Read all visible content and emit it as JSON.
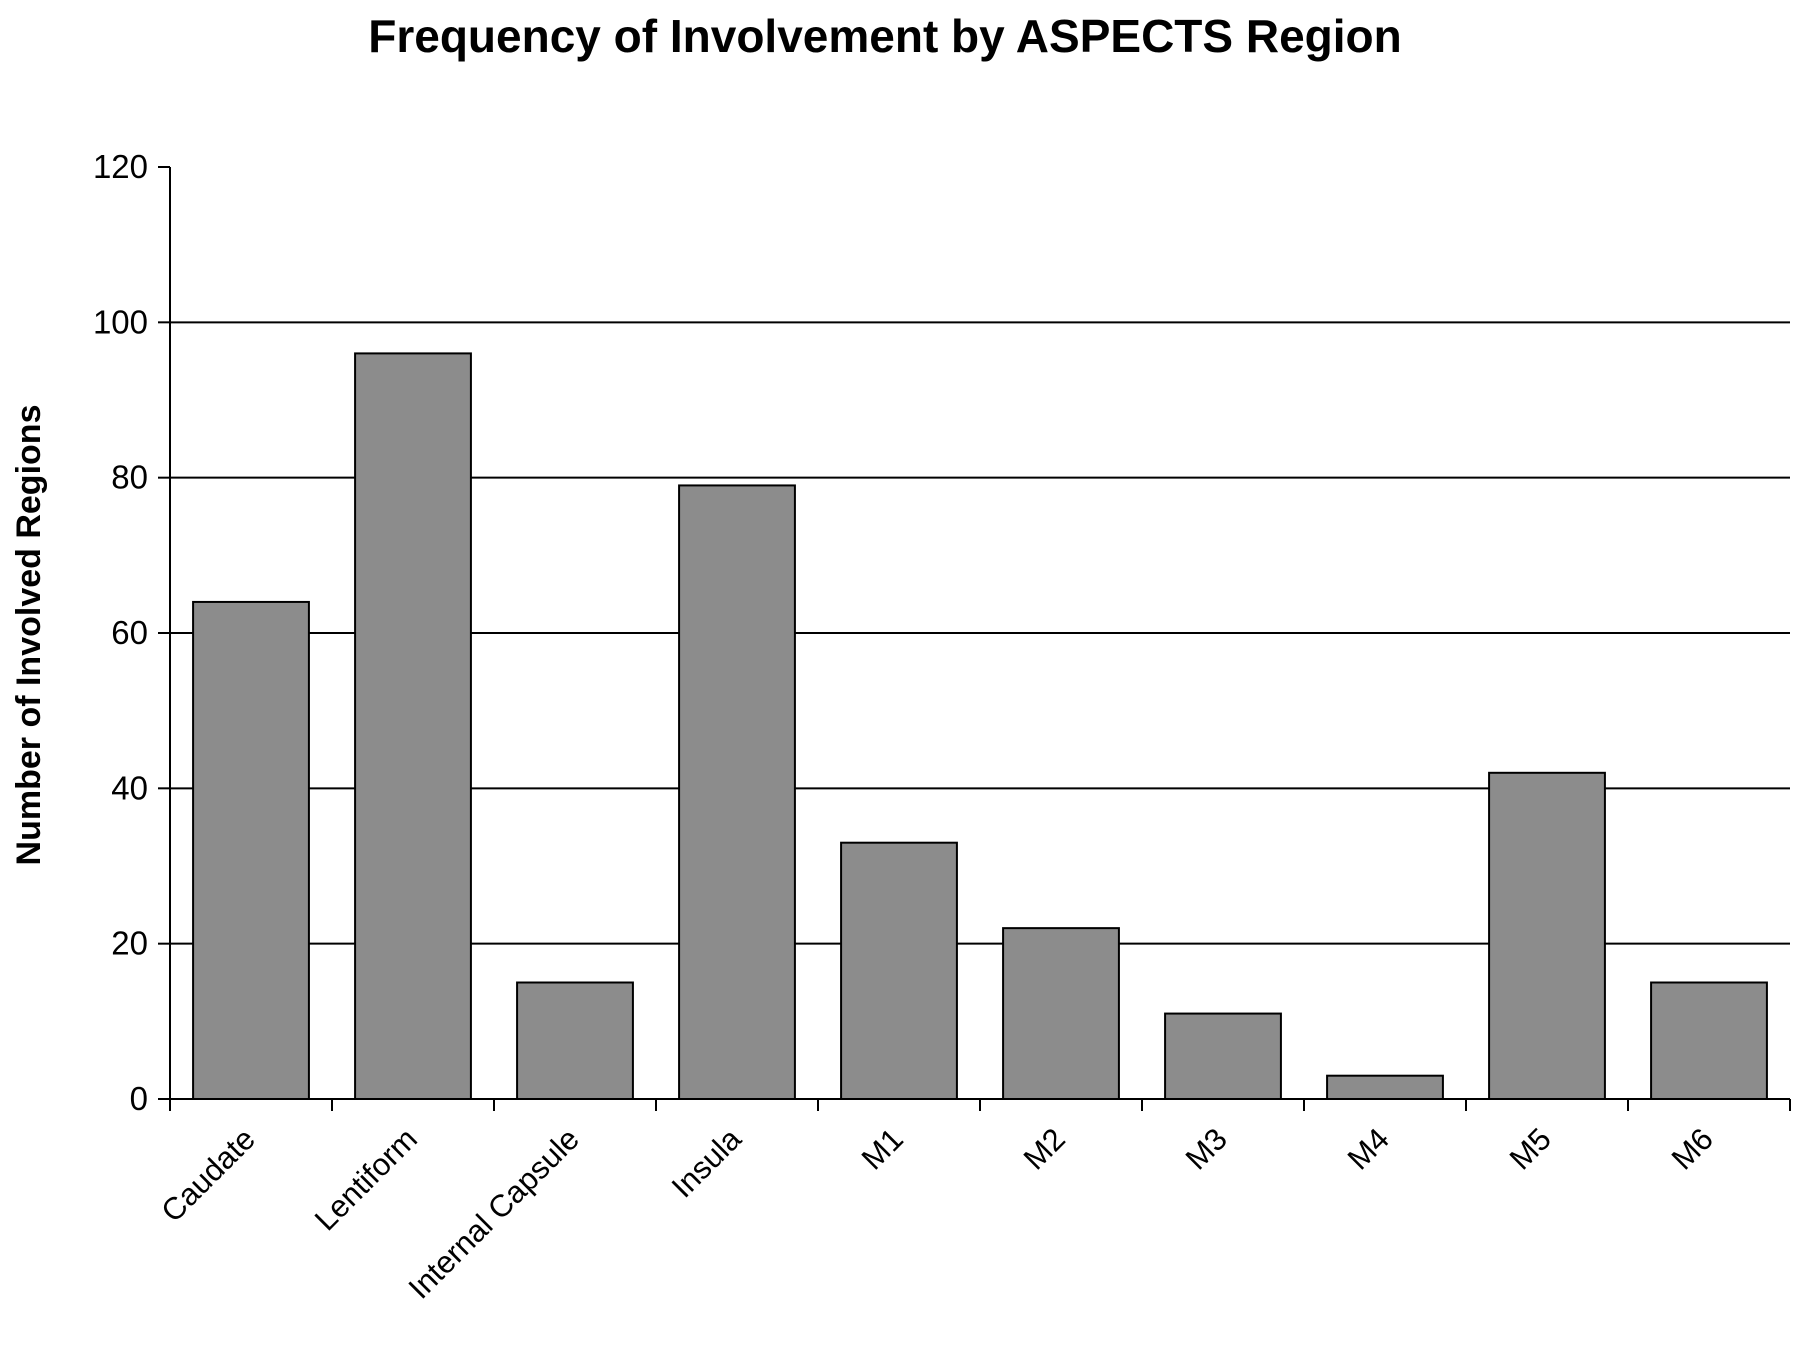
{
  "chart_data": {
    "type": "bar",
    "title": "Frequency of Involvement by ASPECTS Region",
    "xlabel": "",
    "ylabel": "Number of Involved Regions",
    "categories": [
      "Caudate",
      "Lentiform",
      "Internal Capsule",
      "Insula",
      "M1",
      "M2",
      "M3",
      "M4",
      "M5",
      "M6"
    ],
    "values": [
      64,
      96,
      15,
      79,
      33,
      22,
      11,
      3,
      42,
      15
    ],
    "ylim": [
      0,
      120
    ],
    "yticks": [
      0,
      20,
      40,
      60,
      80,
      100,
      120
    ],
    "grid": true,
    "legend": "none",
    "colors": {
      "bar_fill": "#8c8c8c",
      "bar_stroke": "#000000",
      "gridline": "#000000",
      "axis": "#000000",
      "background": "#ffffff"
    }
  }
}
